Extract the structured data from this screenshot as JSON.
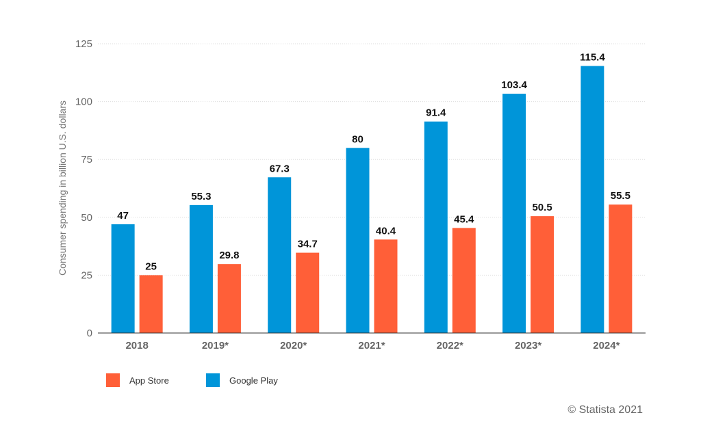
{
  "chart_data": {
    "type": "bar",
    "categories": [
      "2018",
      "2019*",
      "2020*",
      "2021*",
      "2022*",
      "2023*",
      "2024*"
    ],
    "series": [
      {
        "name": "Google Play",
        "color": "#0095d9",
        "values": [
          47,
          55.3,
          67.3,
          80,
          91.4,
          103.4,
          115.4
        ]
      },
      {
        "name": "App Store",
        "color": "#ff5f38",
        "values": [
          25,
          29.8,
          34.7,
          40.4,
          45.4,
          50.5,
          55.5
        ]
      }
    ],
    "value_labels": {
      "Google Play": [
        "47",
        "55.3",
        "67.3",
        "80",
        "91.4",
        "103.4",
        "115.4"
      ],
      "App Store": [
        "25",
        "29.8",
        "34.7",
        "40.4",
        "45.4",
        "50.5",
        "55.5"
      ]
    },
    "ylabel": "Consumer spending in billion U.S. dollars",
    "ylim": [
      0,
      125
    ],
    "yticks": [
      0,
      25,
      50,
      75,
      100,
      125
    ],
    "grid": true,
    "legend": {
      "placement": "bottom-left",
      "order": [
        "App Store",
        "Google Play"
      ]
    }
  },
  "credit": "© Statista 2021"
}
